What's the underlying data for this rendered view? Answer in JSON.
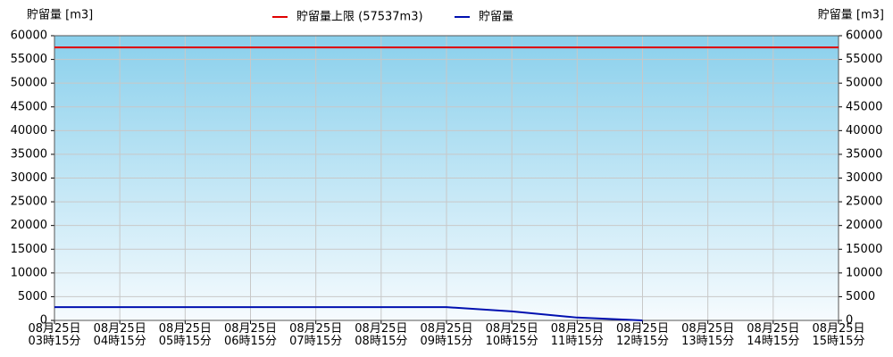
{
  "chart_data": {
    "type": "line",
    "ylabel": "貯留量 [m3]",
    "y2label": "貯留量 [m3]",
    "categories": [
      "08月25日\n03時15分",
      "08月25日\n04時15分",
      "08月25日\n05時15分",
      "08月25日\n06時15分",
      "08月25日\n07時15分",
      "08月25日\n08時15分",
      "08月25日\n09時15分",
      "08月25日\n10時15分",
      "08月25日\n11時15分",
      "08月25日\n12時15分",
      "08月25日\n13時15分",
      "08月25日\n14時15分",
      "08月25日\n15時15分"
    ],
    "series": [
      {
        "name": "貯留量上限 (57537m3)",
        "color": "#e00000",
        "values": [
          57537,
          57537,
          57537,
          57537,
          57537,
          57537,
          57537,
          57537,
          57537,
          57537,
          57537,
          57537,
          57537
        ]
      },
      {
        "name": "貯留量",
        "color": "#0010b0",
        "values": [
          2800,
          2800,
          2800,
          2800,
          2800,
          2800,
          2800,
          1900,
          600,
          0,
          null,
          null,
          null
        ]
      }
    ],
    "ylim": [
      0,
      60000
    ],
    "yticks": [
      0,
      5000,
      10000,
      15000,
      20000,
      25000,
      30000,
      35000,
      40000,
      45000,
      50000,
      55000,
      60000
    ],
    "grid": true
  }
}
